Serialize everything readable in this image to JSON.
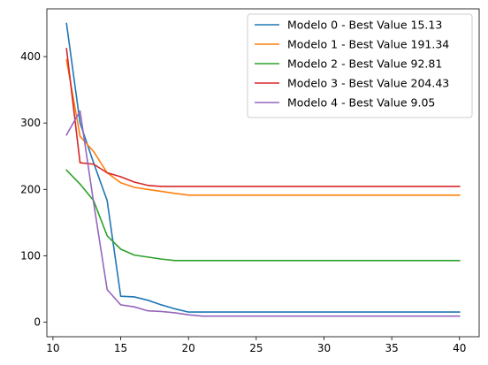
{
  "chart_data": {
    "type": "line",
    "title": "",
    "xlabel": "",
    "ylabel": "",
    "xlim": [
      9.55,
      41.45
    ],
    "ylim": [
      -22,
      472
    ],
    "xticks": [
      10,
      15,
      20,
      25,
      30,
      35,
      40
    ],
    "yticks": [
      0,
      100,
      200,
      300,
      400
    ],
    "grid": false,
    "legend_position": "top-right",
    "x": [
      11,
      12,
      13,
      14,
      15,
      16,
      17,
      18,
      19,
      20,
      21,
      22,
      23,
      24,
      25,
      26,
      27,
      28,
      29,
      30,
      31,
      32,
      33,
      34,
      35,
      36,
      37,
      38,
      39,
      40
    ],
    "series": [
      {
        "name": "Modelo 0 - Best Value 15.13",
        "color": "#1f77b4",
        "values": [
          450,
          300,
          240,
          183,
          39,
          38,
          33,
          26,
          20,
          15.13,
          15.13,
          15.13,
          15.13,
          15.13,
          15.13,
          15.13,
          15.13,
          15.13,
          15.13,
          15.13,
          15.13,
          15.13,
          15.13,
          15.13,
          15.13,
          15.13,
          15.13,
          15.13,
          15.13,
          15.13
        ]
      },
      {
        "name": "Modelo 1 - Best Value 191.34",
        "color": "#ff7f0e",
        "values": [
          395,
          280,
          257,
          225,
          210,
          203,
          200,
          197,
          194,
          191.34,
          191.34,
          191.34,
          191.34,
          191.34,
          191.34,
          191.34,
          191.34,
          191.34,
          191.34,
          191.34,
          191.34,
          191.34,
          191.34,
          191.34,
          191.34,
          191.34,
          191.34,
          191.34,
          191.34,
          191.34
        ]
      },
      {
        "name": "Modelo 2 - Best Value 92.81",
        "color": "#2ca02c",
        "values": [
          229,
          208,
          183,
          130,
          110,
          101,
          98,
          95,
          92.81,
          92.81,
          92.81,
          92.81,
          92.81,
          92.81,
          92.81,
          92.81,
          92.81,
          92.81,
          92.81,
          92.81,
          92.81,
          92.81,
          92.81,
          92.81,
          92.81,
          92.81,
          92.81,
          92.81,
          92.81,
          92.81
        ]
      },
      {
        "name": "Modelo 3 - Best Value 204.43",
        "color": "#d62728",
        "values": [
          412,
          240,
          238,
          225,
          219,
          211,
          206,
          204.43,
          204.43,
          204.43,
          204.43,
          204.43,
          204.43,
          204.43,
          204.43,
          204.43,
          204.43,
          204.43,
          204.43,
          204.43,
          204.43,
          204.43,
          204.43,
          204.43,
          204.43,
          204.43,
          204.43,
          204.43,
          204.43,
          204.43
        ]
      },
      {
        "name": "Modelo 4 - Best Value 9.05",
        "color": "#9467bd",
        "values": [
          282,
          318,
          180,
          49,
          26,
          23,
          17,
          16,
          14,
          11,
          9.05,
          9.05,
          9.05,
          9.05,
          9.05,
          9.05,
          9.05,
          9.05,
          9.05,
          9.05,
          9.05,
          9.05,
          9.05,
          9.05,
          9.05,
          9.05,
          9.05,
          9.05,
          9.05,
          9.05
        ]
      }
    ]
  }
}
